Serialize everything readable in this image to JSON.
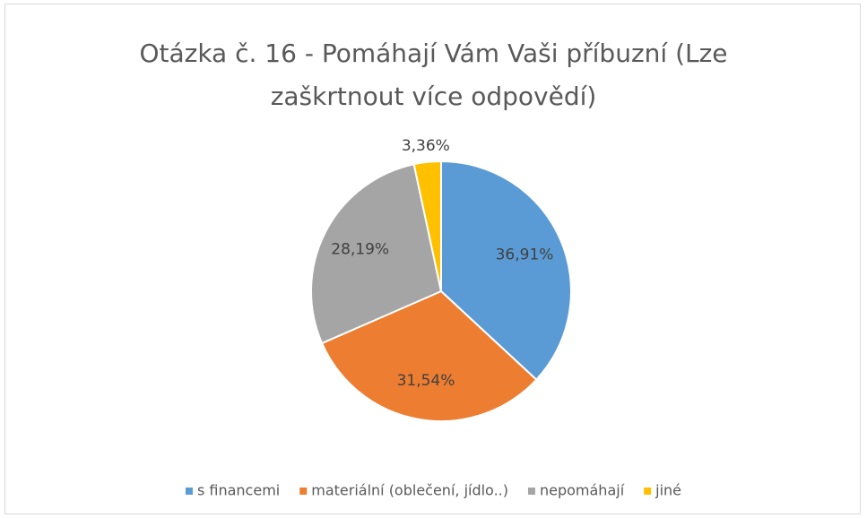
{
  "chart_data": {
    "type": "pie",
    "title": "Otázka č. 16 - Pomáhají Vám Vaši příbuzní (Lze zaškrtnout více odpovědí)",
    "categories": [
      "s financemi",
      "materiální (oblečení, jídlo..)",
      "nepomáhají",
      "jiné"
    ],
    "values": [
      36.91,
      31.54,
      28.19,
      3.36
    ],
    "value_labels": [
      "36,91%",
      "31,54%",
      "28,19%",
      "3,36%"
    ],
    "colors": [
      "#5b9bd5",
      "#ed7d31",
      "#a5a5a5",
      "#ffc000"
    ],
    "legend": "bottom"
  }
}
